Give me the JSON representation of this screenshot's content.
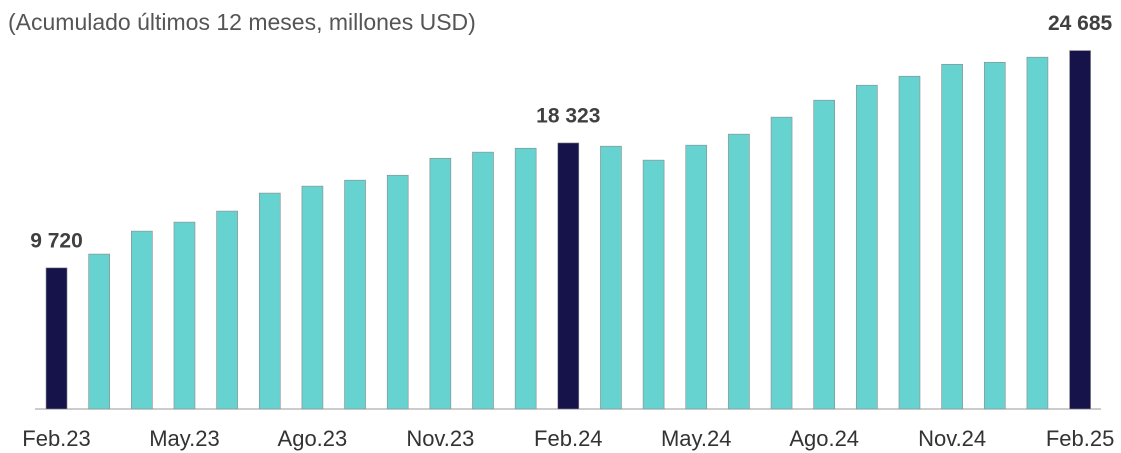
{
  "chart_data": {
    "type": "bar",
    "subtitle": "(Acumulado últimos 12 meses, millones USD)",
    "categories": [
      "Feb.23",
      null,
      null,
      "May.23",
      null,
      null,
      "Ago.23",
      null,
      null,
      "Nov.23",
      null,
      null,
      "Feb.24",
      null,
      null,
      "May.24",
      null,
      null,
      "Ago.24",
      null,
      null,
      "Nov.24",
      null,
      null,
      "Feb.25"
    ],
    "values": [
      9720,
      10670,
      12250,
      12870,
      13630,
      14870,
      15350,
      15760,
      16100,
      17270,
      17690,
      17960,
      18323,
      18100,
      17140,
      18170,
      18930,
      20100,
      21270,
      22300,
      22920,
      23740,
      23880,
      24230,
      24685
    ],
    "value_labels": [
      "9 720",
      null,
      null,
      null,
      null,
      null,
      null,
      null,
      null,
      null,
      null,
      null,
      "18 323",
      null,
      null,
      null,
      null,
      null,
      null,
      null,
      null,
      null,
      null,
      null,
      "24 685"
    ],
    "color": "#66d3d0",
    "highlight_color": "#15134a",
    "ylim": [
      0,
      25000
    ]
  }
}
